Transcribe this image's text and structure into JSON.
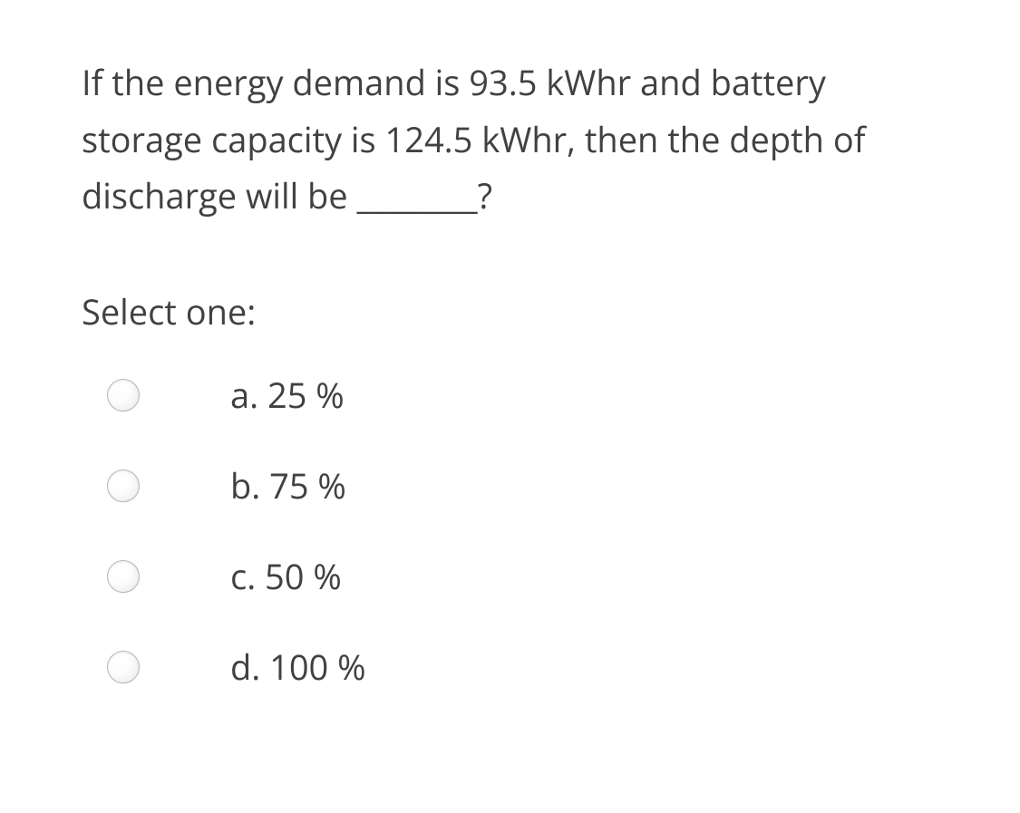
{
  "question": {
    "text": "If the energy demand is 93.5 kWhr and battery storage capacity is 124.5 kWhr, then the depth of discharge will be ________?",
    "text_color": "#414141",
    "fontsize": 38,
    "line_height": 1.65
  },
  "prompt": {
    "label": "Select one:",
    "text_color": "#414141",
    "fontsize": 38
  },
  "options": [
    {
      "label": "a. 25 %",
      "selected": false
    },
    {
      "label": "b. 75 %",
      "selected": false
    },
    {
      "label": "c. 50 %",
      "selected": false
    },
    {
      "label": "d. 100 %",
      "selected": false
    }
  ],
  "radio_style": {
    "diameter": 36,
    "border_color": "#b8b8b8",
    "gradient_start": "#ffffff",
    "gradient_end": "#e8e8e8"
  },
  "background_color": "#ffffff"
}
